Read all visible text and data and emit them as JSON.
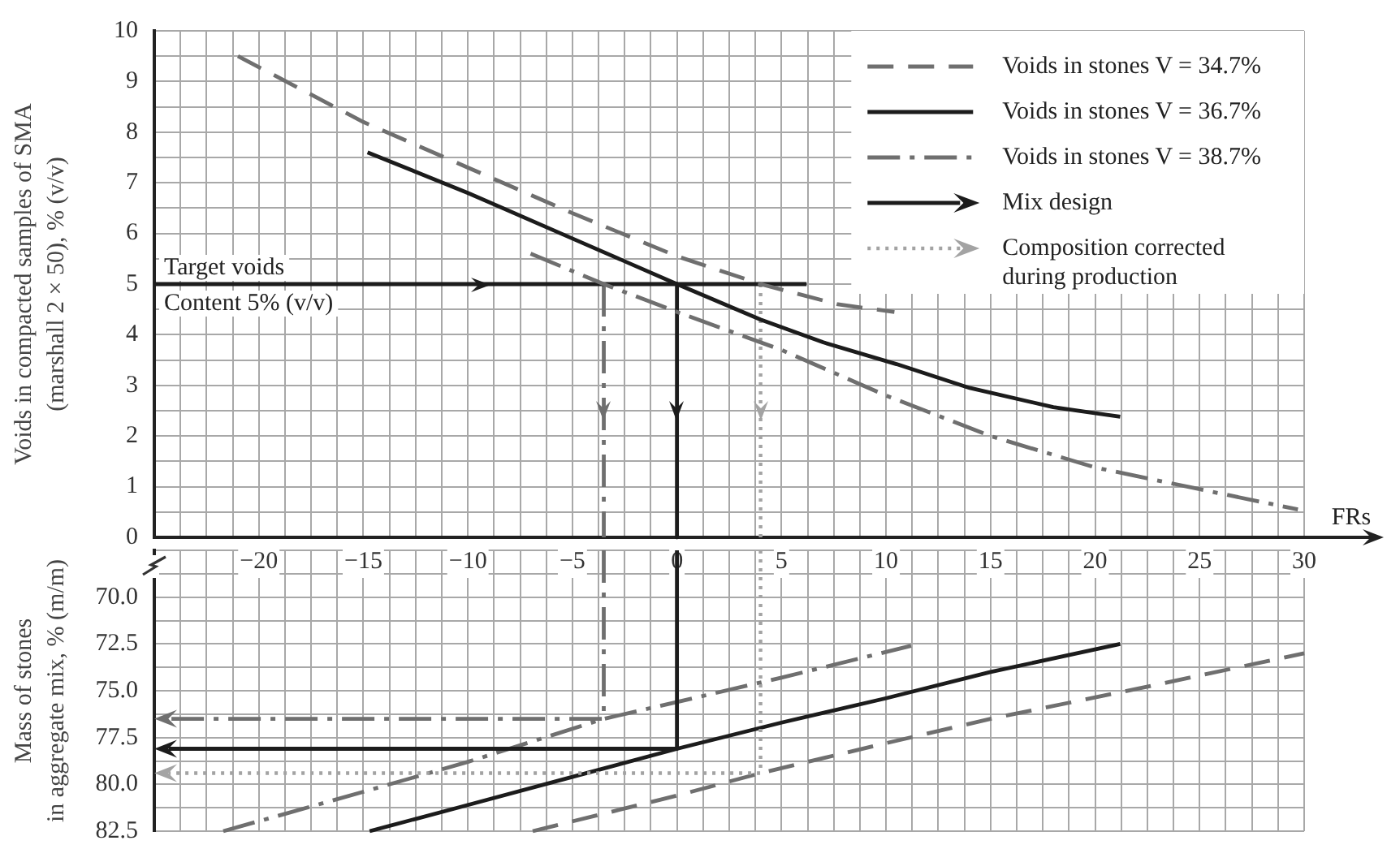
{
  "chart_data": [
    {
      "type": "line",
      "xlabel": "FRs",
      "ylabel": "Voids in compacted samples of SMA\n(marshall 2 × 50), % (v/v)",
      "annotations": [
        {
          "text": "Target voids",
          "x": -25,
          "y": 5
        },
        {
          "text": "Content 5% (v/v)",
          "x": -25,
          "y": 5
        }
      ],
      "xlim": [
        -25,
        30
      ],
      "xticks": [
        {
          "value": -25,
          "label": null
        },
        {
          "value": -23.75,
          "label": null
        },
        {
          "value": -22.5,
          "label": null
        },
        {
          "value": -21.25,
          "label": null
        },
        {
          "value": -20,
          "label": "−20"
        },
        {
          "value": -18.75,
          "label": null
        },
        {
          "value": -17.5,
          "label": null
        },
        {
          "value": -16.25,
          "label": null
        },
        {
          "value": -15,
          "label": "−15"
        },
        {
          "value": -13.75,
          "label": null
        },
        {
          "value": -12.5,
          "label": null
        },
        {
          "value": -11.25,
          "label": null
        },
        {
          "value": -10,
          "label": "−10"
        },
        {
          "value": -8.75,
          "label": null
        },
        {
          "value": -7.5,
          "label": null
        },
        {
          "value": -6.25,
          "label": null
        },
        {
          "value": -5,
          "label": "−5"
        },
        {
          "value": -3.75,
          "label": null
        },
        {
          "value": -2.5,
          "label": null
        },
        {
          "value": -1.25,
          "label": null
        },
        0,
        {
          "value": 1.25,
          "label": null
        },
        {
          "value": 2.5,
          "label": null
        },
        {
          "value": 3.75,
          "label": null
        },
        5,
        {
          "value": 6.25,
          "label": null
        },
        {
          "value": 7.5,
          "label": null
        },
        {
          "value": 8.75,
          "label": null
        },
        10,
        {
          "value": 11.25,
          "label": null
        },
        {
          "value": 12.5,
          "label": null
        },
        {
          "value": 13.75,
          "label": null
        },
        15,
        {
          "value": 16.25,
          "label": null
        },
        {
          "value": 17.5,
          "label": null
        },
        {
          "value": 18.75,
          "label": null
        },
        20,
        {
          "value": 21.25,
          "label": null
        },
        {
          "value": 22.5,
          "label": null
        },
        {
          "value": 23.75,
          "label": null
        },
        25,
        {
          "value": 26.25,
          "label": null
        },
        {
          "value": 27.5,
          "label": null
        },
        {
          "value": 28.75,
          "label": null
        },
        30
      ],
      "ylim": [
        0,
        10
      ],
      "yticks": [
        0,
        {
          "value": 0.5,
          "label": null
        },
        1,
        {
          "value": 1.5,
          "label": null
        },
        2,
        {
          "value": 2.5,
          "label": null
        },
        3,
        {
          "value": 3.5,
          "label": null
        },
        4,
        {
          "value": 4.5,
          "label": null
        },
        5,
        {
          "value": 5.5,
          "label": null
        },
        6,
        {
          "value": 6.5,
          "label": null
        },
        7,
        {
          "value": 7.5,
          "label": null
        },
        8,
        {
          "value": 8.5,
          "label": null
        },
        9,
        {
          "value": 9.5,
          "label": null
        },
        10
      ],
      "grid": true,
      "legend": "top right",
      "series": [
        {
          "name": "Voids in stones V = 34.7%",
          "color": "#6f6f6f",
          "line_style": "dashed",
          "x": [
            -21,
            -15,
            -10,
            -5,
            0,
            4,
            7.7,
            10.4
          ],
          "values": [
            9.5,
            8.2,
            7.3,
            6.4,
            5.55,
            5.0,
            4.6,
            4.45
          ]
        },
        {
          "name": "Voids in stones V = 36.7%",
          "color": "#1c1c1c",
          "line_style": "solid",
          "x": [
            -14.8,
            -10,
            -5,
            0,
            4,
            7,
            10.5,
            14,
            18,
            21.2
          ],
          "values": [
            7.6,
            6.8,
            5.9,
            5.0,
            4.3,
            3.85,
            3.42,
            2.95,
            2.57,
            2.38
          ]
        },
        {
          "name": "Voids in stones V = 38.7%",
          "color": "#6f6f6f",
          "line_style": "dashdot",
          "x": [
            -7,
            -3.5,
            0,
            5,
            10,
            15,
            20,
            25,
            29.7
          ],
          "values": [
            5.6,
            5.0,
            4.45,
            3.7,
            2.8,
            2.0,
            1.38,
            0.95,
            0.55
          ]
        },
        {
          "color": "#1c1c1c",
          "line_style": "solid",
          "x": [
            -25,
            6.2
          ],
          "values": [
            5,
            5
          ]
        },
        {
          "name": "Mix design",
          "color": "#1c1c1c",
          "line_style": "solid",
          "x": [
            0,
            0
          ],
          "values": [
            5,
            0
          ]
        },
        {
          "color": "#6f6f6f",
          "line_style": "dashdot",
          "x": [
            -3.5,
            -3.5
          ],
          "values": [
            5,
            0
          ]
        },
        {
          "name": "Composition corrected during production",
          "color": "#a3a3a3",
          "line_style": "dotted",
          "x": [
            4,
            4
          ],
          "values": [
            5,
            0
          ]
        }
      ]
    },
    {
      "type": "line",
      "ylabel": "Mass of stones\nin aggregate mix, % (m/m)",
      "xlim": [
        -25,
        30
      ],
      "xticks": [
        -25,
        -23.75,
        -22.5,
        -21.25,
        -20,
        -18.75,
        -17.5,
        -16.25,
        -15,
        -13.75,
        -12.5,
        -11.25,
        -10,
        -8.75,
        -7.5,
        -6.25,
        -5,
        -3.75,
        -2.5,
        -1.25,
        0,
        1.25,
        2.5,
        3.75,
        5,
        6.25,
        7.5,
        8.75,
        10,
        11.25,
        12.5,
        13.75,
        15,
        16.25,
        17.5,
        18.75,
        20,
        21.25,
        22.5,
        23.75,
        25,
        26.25,
        27.5,
        28.75,
        30
      ],
      "ylim": [
        82.5,
        67.5
      ],
      "yticks": [
        {
          "value": 67.5,
          "label": null
        },
        {
          "value": 68.75,
          "label": null
        },
        {
          "value": 70,
          "label": "70.0"
        },
        {
          "value": 71.25,
          "label": null
        },
        72.5,
        {
          "value": 73.75,
          "label": null
        },
        {
          "value": 75,
          "label": "75.0"
        },
        {
          "value": 76.25,
          "label": null
        },
        77.5,
        {
          "value": 78.75,
          "label": null
        },
        {
          "value": 80,
          "label": "80.0"
        },
        {
          "value": 81.25,
          "label": null
        },
        82.5
      ],
      "grid": true,
      "tick_labels": "y",
      "series": [
        {
          "color": "#6f6f6f",
          "line_style": "dashed",
          "x": [
            -6.9,
            0,
            4,
            10,
            15,
            22,
            30
          ],
          "values": [
            82.5,
            80.6,
            79.4,
            77.8,
            76.5,
            74.9,
            73.0
          ]
        },
        {
          "color": "#1c1c1c",
          "line_style": "solid",
          "x": [
            -14.7,
            -10,
            -5,
            0,
            5,
            10,
            15,
            21.2
          ],
          "values": [
            82.5,
            81.1,
            79.6,
            78.1,
            76.7,
            75.4,
            74.0,
            72.5
          ]
        },
        {
          "color": "#6f6f6f",
          "line_style": "dashdot",
          "x": [
            -21.7,
            -15,
            -10,
            -3.5,
            0,
            5,
            11.2
          ],
          "values": [
            82.5,
            80.4,
            78.8,
            76.5,
            75.6,
            74.3,
            72.6
          ]
        }
      ]
    }
  ]
}
